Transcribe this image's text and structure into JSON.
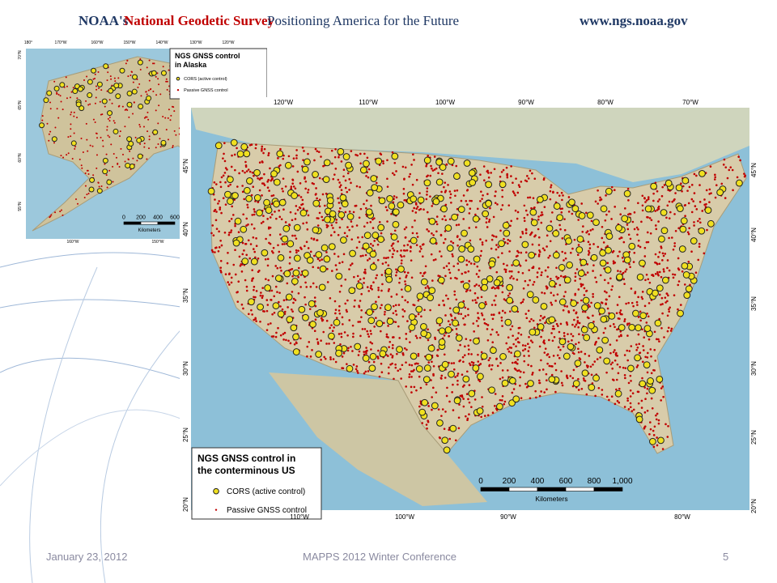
{
  "header": {
    "agency": "NOAA's",
    "survey": "National Geodetic Survey",
    "tagline": "Positioning America for the Future",
    "url": "www.ngs.noaa.gov"
  },
  "alaska_map": {
    "title": "NGS GNSS control in Alaska",
    "legend": [
      "CORS (active control)",
      "Passive GNSS control"
    ],
    "scale": {
      "ticks": [
        "0",
        "200",
        "400",
        "600"
      ],
      "unit": "Kilometers"
    },
    "top_labels": [
      "180°",
      "170°W",
      "160°W",
      "150°W",
      "140°W",
      "130°W",
      "120°W"
    ],
    "bottom_labels": [
      "160°W",
      "150°W"
    ],
    "left_labels": [
      "70°N",
      "65°N",
      "60°N",
      "55°N"
    ]
  },
  "conus_map": {
    "title": "NGS GNSS control in the conterminous US",
    "legend": [
      "CORS (active control)",
      "Passive GNSS control"
    ],
    "scale": {
      "ticks": [
        "0",
        "200",
        "400",
        "600",
        "800",
        "1,000"
      ],
      "unit": "Kilometers"
    },
    "top_labels": [
      "120°W",
      "110°W",
      "100°W",
      "90°W",
      "80°W",
      "70°W"
    ],
    "bottom_labels": [
      "110°W",
      "100°W",
      "90°W",
      "80°W"
    ],
    "left_labels": [
      "45°N",
      "40°N",
      "35°N",
      "30°N",
      "25°N",
      "20°N"
    ],
    "right_labels": [
      "45°N",
      "40°N",
      "35°N",
      "30°N",
      "25°N",
      "20°N"
    ]
  },
  "footer": {
    "date": "January 23, 2012",
    "event": "MAPPS 2012 Winter Conference",
    "page": "5"
  }
}
